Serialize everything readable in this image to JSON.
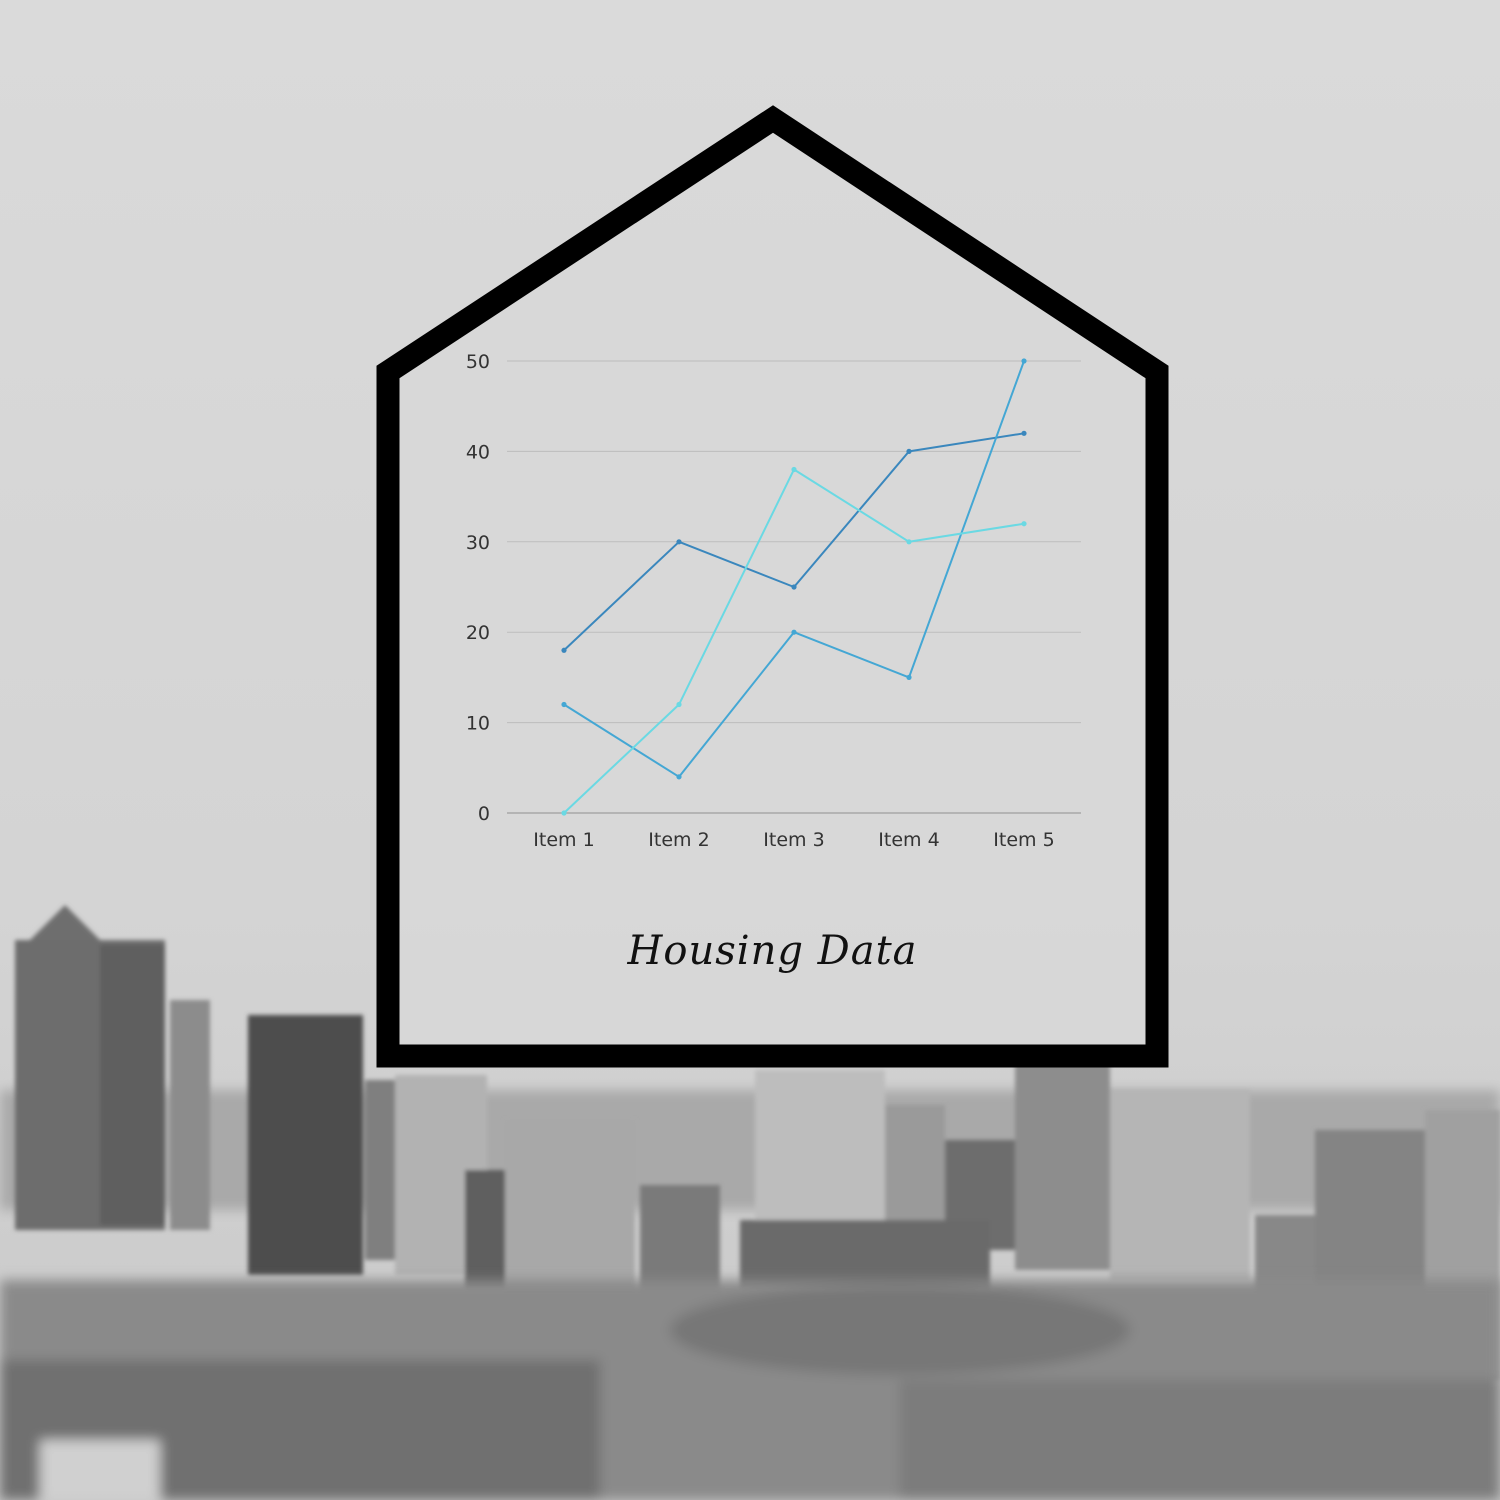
{
  "title": "Housing Data",
  "colors": {
    "frame": "#000000",
    "grid": "#bdbdbd",
    "background": "#d9d9d9"
  },
  "chart_data": {
    "type": "line",
    "title": "Housing Data",
    "categories": [
      "Item 1",
      "Item 2",
      "Item 3",
      "Item 4",
      "Item 5"
    ],
    "ylim": [
      0,
      50
    ],
    "yticks": [
      0,
      10,
      20,
      30,
      40,
      50
    ],
    "grid": true,
    "series": [
      {
        "values": [
          18,
          30,
          25,
          40,
          42
        ],
        "color": "#3a87bd"
      },
      {
        "values": [
          12,
          4,
          20,
          15,
          50
        ],
        "color": "#44a7d4"
      },
      {
        "values": [
          0,
          12,
          38,
          30,
          32
        ],
        "color": "#6ad9e3"
      }
    ]
  }
}
